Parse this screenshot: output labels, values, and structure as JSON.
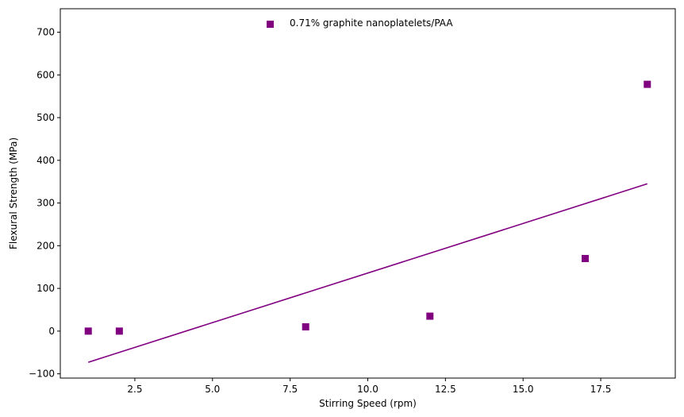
{
  "chart_data": {
    "type": "scatter",
    "title": "",
    "xlabel": "Stirring Speed (rpm)",
    "ylabel": "Flexural Strength (MPa)",
    "xlim": [
      0.1,
      19.9
    ],
    "ylim": [
      -110,
      755
    ],
    "xticks": [
      2.5,
      5.0,
      7.5,
      10.0,
      12.5,
      15.0,
      17.5
    ],
    "xtick_labels": [
      "2.5",
      "5.0",
      "7.5",
      "10.0",
      "12.5",
      "15.0",
      "17.5"
    ],
    "yticks": [
      -100,
      0,
      100,
      200,
      300,
      400,
      500,
      600,
      700
    ],
    "ytick_labels": [
      "−100",
      "0",
      "100",
      "200",
      "300",
      "400",
      "500",
      "600",
      "700"
    ],
    "grid": false,
    "legend_position": "top-center",
    "series": [
      {
        "name": "0.71% graphite nanoplatelets/PAA",
        "kind": "scatter",
        "marker": "square",
        "color": "#800080",
        "x": [
          1,
          2,
          8,
          12,
          17,
          19
        ],
        "y": [
          0,
          0,
          10,
          35,
          170,
          578
        ]
      },
      {
        "kind": "line",
        "color": "#800080",
        "x": [
          1,
          19
        ],
        "y": [
          -73,
          345
        ]
      }
    ]
  }
}
